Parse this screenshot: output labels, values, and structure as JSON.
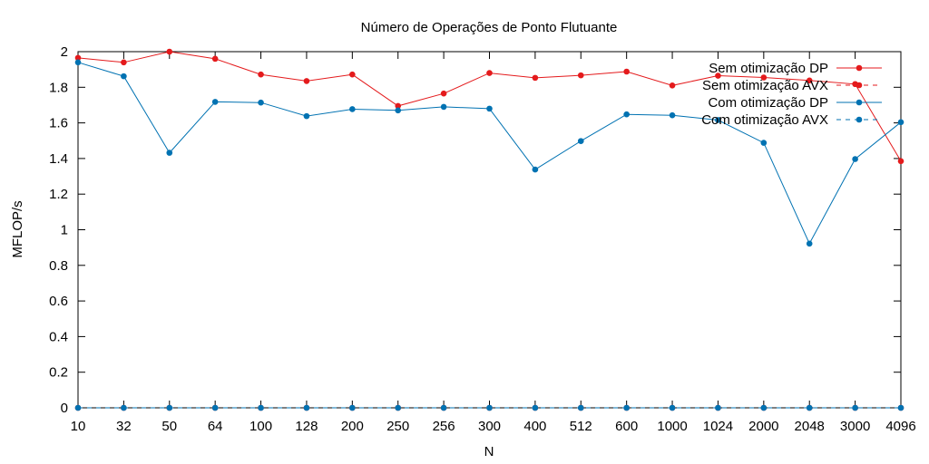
{
  "chart_data": {
    "type": "line",
    "title": "Número de Operações de Ponto Flutuante",
    "xlabel": "N",
    "ylabel": "MFLOP/s",
    "ylim": [
      0,
      2
    ],
    "yticks": [
      "0",
      "0.2",
      "0.4",
      "0.6",
      "0.8",
      "1",
      "1.2",
      "1.4",
      "1.6",
      "1.8",
      "2"
    ],
    "categories": [
      "10",
      "32",
      "50",
      "64",
      "100",
      "128",
      "200",
      "250",
      "256",
      "300",
      "400",
      "512",
      "600",
      "1000",
      "1024",
      "2000",
      "2048",
      "3000",
      "4096"
    ],
    "legend_position": "top-right",
    "grid": false,
    "series": [
      {
        "name": "Sem otimização DP",
        "color": "#e41a1c",
        "style": "solid",
        "values": [
          1.965,
          1.94,
          2.0,
          1.96,
          1.872,
          1.835,
          1.872,
          1.695,
          1.765,
          1.88,
          1.853,
          1.867,
          1.888,
          1.81,
          1.865,
          1.855,
          1.838,
          1.818,
          1.385
        ]
      },
      {
        "name": "Sem otimização AVX",
        "color": "#e41a1c",
        "style": "dashed",
        "values": [
          0,
          0,
          0,
          0,
          0,
          0,
          0,
          0,
          0,
          0,
          0,
          0,
          0,
          0,
          0,
          0,
          0,
          0,
          0
        ]
      },
      {
        "name": "Com otimização DP",
        "color": "#0072b2",
        "style": "solid",
        "values": [
          1.94,
          1.862,
          1.432,
          1.718,
          1.714,
          1.638,
          1.677,
          1.67,
          1.69,
          1.68,
          1.338,
          1.498,
          1.648,
          1.643,
          1.616,
          1.488,
          0.922,
          1.397,
          1.604
        ]
      },
      {
        "name": "Com otimização AVX",
        "color": "#0072b2",
        "style": "dashed",
        "values": [
          0,
          0,
          0,
          0,
          0,
          0,
          0,
          0,
          0,
          0,
          0,
          0,
          0,
          0,
          0,
          0,
          0,
          0,
          0
        ]
      }
    ]
  }
}
